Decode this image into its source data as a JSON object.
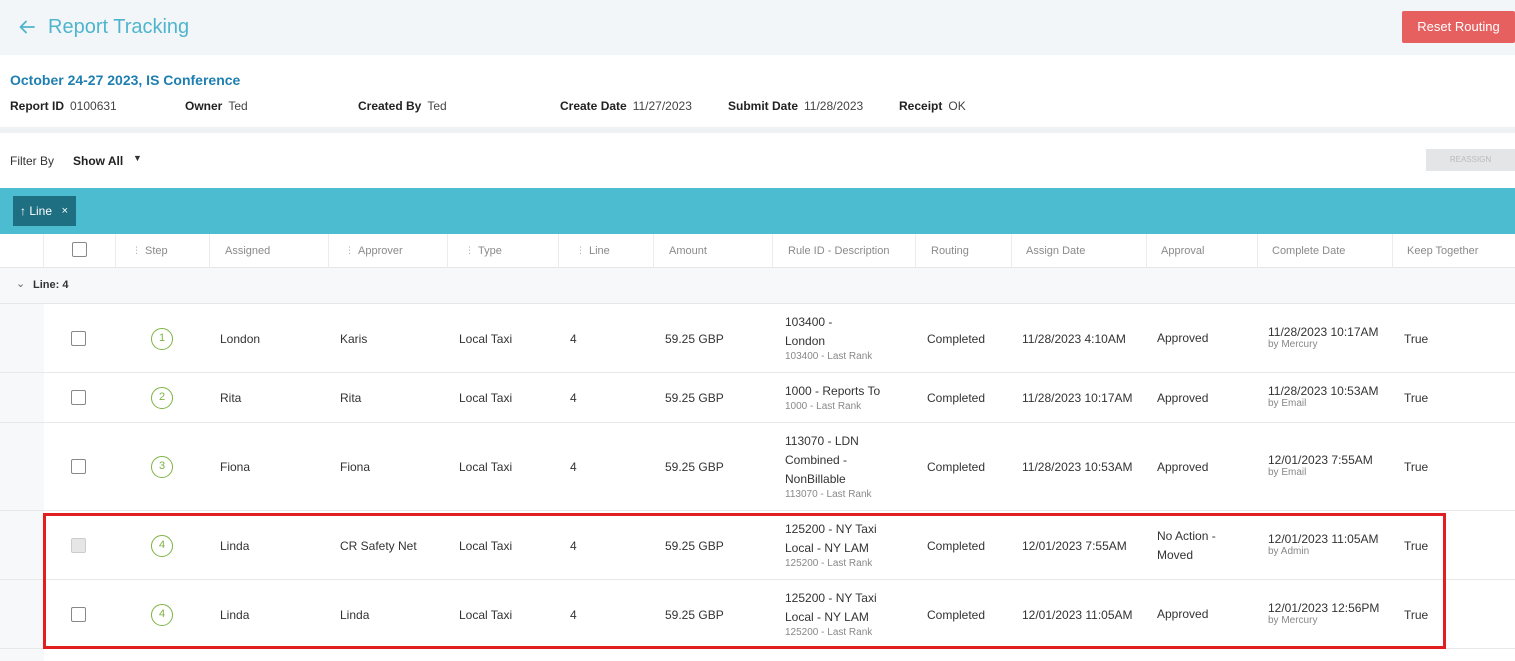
{
  "header": {
    "title": "Report Tracking",
    "back_icon": "arrow-left-icon",
    "reset_label": "Reset Routing"
  },
  "report": {
    "name": "October 24-27 2023, IS Conference",
    "fields": {
      "report_id_label": "Report ID",
      "report_id": "0100631",
      "owner_label": "Owner",
      "owner": "Ted",
      "created_by_label": "Created By",
      "created_by": "Ted",
      "create_date_label": "Create Date",
      "create_date": "11/27/2023",
      "submit_date_label": "Submit Date",
      "submit_date": "11/28/2023",
      "receipt_label": "Receipt",
      "receipt": "OK"
    }
  },
  "filter": {
    "label": "Filter By",
    "value": "Show All",
    "reassign_label": "REASSIGN"
  },
  "grouping": {
    "chip_label": "↑ Line",
    "remove": "×"
  },
  "table": {
    "columns": [
      "Step",
      "Assigned",
      "Approver",
      "Type",
      "Line",
      "Amount",
      "Rule ID - Description",
      "Routing",
      "Assign Date",
      "Approval",
      "Complete Date",
      "Keep Together"
    ],
    "group_label": "Line: 4",
    "rows": [
      {
        "step": "1",
        "assigned": "London",
        "approver": "Karis",
        "type": "Local Taxi",
        "line": "4",
        "amount": "59.25 GBP",
        "rule_lines": [
          "103400 -",
          "London"
        ],
        "rule_sub": "103400 - Last Rank",
        "routing": "Completed",
        "assign_date": "11/28/2023 4:10AM",
        "approval_lines": [
          "Approved"
        ],
        "complete_date": "11/28/2023 10:17AM",
        "complete_by": "by Mercury",
        "keep": "True",
        "disabled": false
      },
      {
        "step": "2",
        "assigned": "Rita",
        "approver": "Rita",
        "type": "Local Taxi",
        "line": "4",
        "amount": "59.25 GBP",
        "rule_lines": [
          "1000 - Reports To"
        ],
        "rule_sub": "1000 - Last Rank",
        "routing": "Completed",
        "assign_date": "11/28/2023 10:17AM",
        "approval_lines": [
          "Approved"
        ],
        "complete_date": "11/28/2023 10:53AM",
        "complete_by": "by Email",
        "keep": "True",
        "disabled": false
      },
      {
        "step": "3",
        "assigned": "Fiona",
        "approver": "Fiona",
        "type": "Local Taxi",
        "line": "4",
        "amount": "59.25 GBP",
        "rule_lines": [
          "113070 - LDN",
          "Combined -",
          "NonBillable"
        ],
        "rule_sub": "113070 - Last Rank",
        "routing": "Completed",
        "assign_date": "11/28/2023 10:53AM",
        "approval_lines": [
          "Approved"
        ],
        "complete_date": "12/01/2023 7:55AM",
        "complete_by": "by Email",
        "keep": "True",
        "disabled": false
      },
      {
        "step": "4",
        "assigned": "Linda",
        "approver": "CR Safety Net",
        "type": "Local Taxi",
        "line": "4",
        "amount": "59.25 GBP",
        "rule_lines": [
          "125200 - NY Taxi",
          "Local - NY LAM"
        ],
        "rule_sub": "125200 - Last Rank",
        "routing": "Completed",
        "assign_date": "12/01/2023 7:55AM",
        "approval_lines": [
          "No Action -",
          "Moved"
        ],
        "complete_date": "12/01/2023 11:05AM",
        "complete_by": "by Admin",
        "keep": "True",
        "disabled": true
      },
      {
        "step": "4",
        "assigned": "Linda",
        "approver": "Linda",
        "type": "Local Taxi",
        "line": "4",
        "amount": "59.25 GBP",
        "rule_lines": [
          "125200 - NY Taxi",
          "Local - NY LAM"
        ],
        "rule_sub": "125200 - Last Rank",
        "routing": "Completed",
        "assign_date": "12/01/2023 11:05AM",
        "approval_lines": [
          "Approved"
        ],
        "complete_date": "12/01/2023 12:56PM",
        "complete_by": "by Mercury",
        "keep": "True",
        "disabled": false
      }
    ]
  },
  "colors": {
    "accent": "#4fb5cd",
    "reset": "#e66060",
    "group_bar": "#4cbcd0",
    "chip": "#1e6f82",
    "step_green": "#7cb342",
    "highlight": "#e02020"
  }
}
